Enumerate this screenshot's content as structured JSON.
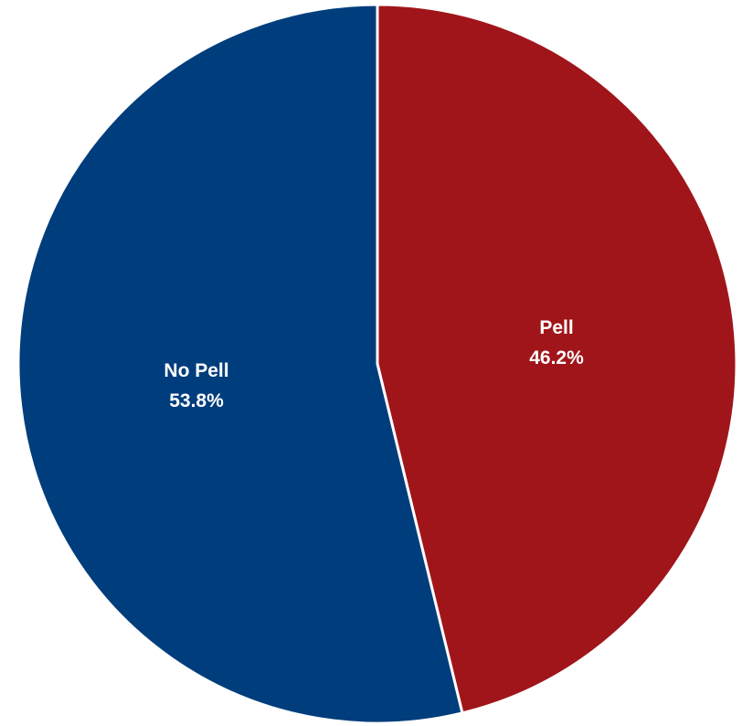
{
  "chart_data": {
    "type": "pie",
    "title": "",
    "start_angle": "12 o'clock, clockwise",
    "slices": [
      {
        "label": "Pell",
        "value": 46.2,
        "value_label": "46.2%",
        "color": "#A0151A"
      },
      {
        "label": "No Pell",
        "value": 53.8,
        "value_label": "53.8%",
        "color": "#003D7C"
      }
    ],
    "legend": "none"
  }
}
